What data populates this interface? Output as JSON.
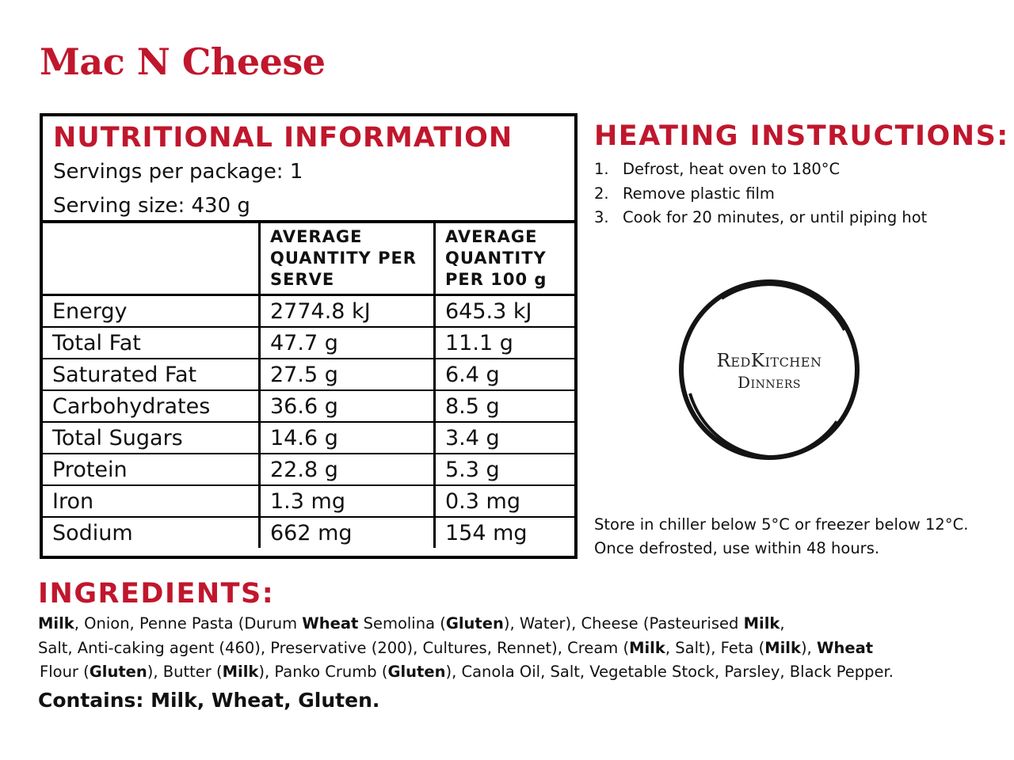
{
  "title": "Mac N Cheese",
  "nutrition": {
    "heading": "NUTRITIONAL INFORMATION",
    "servings_per_package": "Servings per package: 1",
    "serving_size": "Serving size: 430 g",
    "columns": [
      "",
      "AVERAGE QUANTITY PER SERVE",
      "AVERAGE QUANTITY PER 100 g"
    ],
    "rows": [
      {
        "name": "Energy",
        "per_serve": "2774.8 kJ",
        "per_100g": "645.3 kJ"
      },
      {
        "name": "Total Fat",
        "per_serve": "47.7 g",
        "per_100g": "11.1 g"
      },
      {
        "name": "Saturated Fat",
        "per_serve": "27.5 g",
        "per_100g": "6.4 g"
      },
      {
        "name": "Carbohydrates",
        "per_serve": "36.6 g",
        "per_100g": "8.5 g"
      },
      {
        "name": "Total Sugars",
        "per_serve": "14.6 g",
        "per_100g": "3.4 g"
      },
      {
        "name": "Protein",
        "per_serve": "22.8 g",
        "per_100g": "5.3 g"
      },
      {
        "name": "Iron",
        "per_serve": "1.3 mg",
        "per_100g": "0.3 mg"
      },
      {
        "name": "Sodium",
        "per_serve": "662 mg",
        "per_100g": "154 mg"
      }
    ]
  },
  "heating": {
    "heading": "HEATING INSTRUCTIONS:",
    "steps": [
      {
        "num": "1.",
        "text": "Defrost, heat oven to 180°C"
      },
      {
        "num": "2.",
        "text": "Remove plastic film"
      },
      {
        "num": "3.",
        "text": "Cook for 20 minutes, or until piping hot"
      }
    ]
  },
  "logo": {
    "line1": "RedKitchen",
    "line2": "Dinners"
  },
  "storage": "Store in chiller below 5°C or freezer below 12°C. Once defrosted, use within 48 hours.",
  "ingredients": {
    "heading": "INGREDIENTS:",
    "lines": [
      [
        {
          "t": "Milk",
          "b": true
        },
        {
          "t": ", Onion, Penne Pasta (Durum "
        },
        {
          "t": "Wheat",
          "b": true
        },
        {
          "t": " Semolina ("
        },
        {
          "t": "Gluten",
          "b": true
        },
        {
          "t": "), Water), Cheese (Pasteurised "
        },
        {
          "t": "Milk",
          "b": true
        },
        {
          "t": ","
        }
      ],
      [
        {
          "t": "Salt, Anti-caking agent (460), Preservative (200), Cultures, Rennet), Cream ("
        },
        {
          "t": "Milk",
          "b": true
        },
        {
          "t": ", Salt), Feta ("
        },
        {
          "t": "Milk",
          "b": true
        },
        {
          "t": "), "
        },
        {
          "t": "Wheat",
          "b": true
        }
      ],
      [
        {
          "t": "Flour ("
        },
        {
          "t": "Gluten",
          "b": true
        },
        {
          "t": "), Butter ("
        },
        {
          "t": "Milk",
          "b": true
        },
        {
          "t": "), Panko Crumb ("
        },
        {
          "t": "Gluten",
          "b": true
        },
        {
          "t": "), Canola Oil, Salt, Vegetable Stock, Parsley, Black Pepper."
        }
      ]
    ],
    "contains": "Contains: Milk, Wheat, Gluten."
  },
  "colors": {
    "accent": "#c0172d",
    "text": "#111111",
    "border": "#000000"
  }
}
